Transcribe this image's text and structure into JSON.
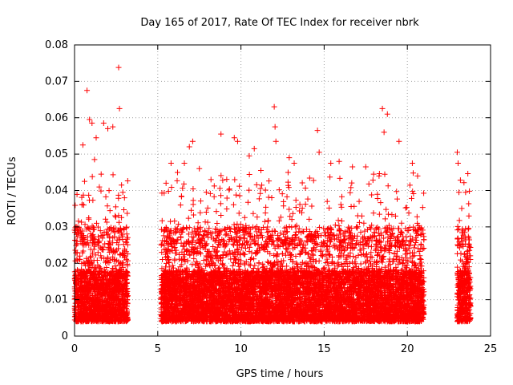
{
  "chart_data": {
    "type": "scatter",
    "title": "Day 165 of 2017, Rate Of TEC Index for receiver nbrk",
    "xlabel": "GPS time / hours",
    "ylabel": "ROTI / TECUs",
    "xlim": [
      0,
      25
    ],
    "ylim": [
      0,
      0.08
    ],
    "xticks": [
      "0",
      "5",
      "10",
      "15",
      "20",
      "25"
    ],
    "yticks": [
      "0",
      "0.01",
      "0.02",
      "0.03",
      "0.04",
      "0.05",
      "0.06",
      "0.07",
      "0.08"
    ],
    "grid": true,
    "marker": "plus",
    "series_color": "#ff0000",
    "data_coverage": [
      {
        "x_start": 0.0,
        "x_end": 3.2
      },
      {
        "x_start": 5.2,
        "x_end": 21.0
      },
      {
        "x_start": 23.0,
        "x_end": 23.8
      }
    ],
    "typical_range": [
      0.004,
      0.03
    ],
    "points": [
      [
        0.75,
        0.0675
      ],
      [
        0.9,
        0.0595
      ],
      [
        1.05,
        0.0585
      ],
      [
        1.3,
        0.0545
      ],
      [
        1.75,
        0.0585
      ],
      [
        2.0,
        0.057
      ],
      [
        2.3,
        0.0575
      ],
      [
        2.65,
        0.0738
      ],
      [
        2.7,
        0.0625
      ],
      [
        0.5,
        0.0525
      ],
      [
        0.6,
        0.0425
      ],
      [
        1.2,
        0.0485
      ],
      [
        1.6,
        0.0445
      ],
      [
        2.9,
        0.0395
      ],
      [
        3.0,
        0.038
      ],
      [
        5.5,
        0.042
      ],
      [
        5.8,
        0.0475
      ],
      [
        6.6,
        0.0475
      ],
      [
        6.9,
        0.052
      ],
      [
        7.1,
        0.0535
      ],
      [
        7.5,
        0.046
      ],
      [
        8.2,
        0.043
      ],
      [
        8.8,
        0.0555
      ],
      [
        9.6,
        0.0545
      ],
      [
        9.8,
        0.0535
      ],
      [
        10.5,
        0.0495
      ],
      [
        10.8,
        0.0515
      ],
      [
        11.2,
        0.0455
      ],
      [
        12.0,
        0.063
      ],
      [
        12.05,
        0.0575
      ],
      [
        12.1,
        0.0535
      ],
      [
        12.9,
        0.049
      ],
      [
        13.2,
        0.0475
      ],
      [
        14.6,
        0.0565
      ],
      [
        14.7,
        0.0505
      ],
      [
        15.4,
        0.0475
      ],
      [
        15.9,
        0.048
      ],
      [
        16.7,
        0.0465
      ],
      [
        17.5,
        0.0465
      ],
      [
        18.3,
        0.044
      ],
      [
        18.5,
        0.0625
      ],
      [
        18.6,
        0.056
      ],
      [
        18.8,
        0.061
      ],
      [
        19.5,
        0.0535
      ],
      [
        20.3,
        0.0475
      ],
      [
        20.6,
        0.031
      ],
      [
        20.8,
        0.024
      ],
      [
        23.0,
        0.0505
      ],
      [
        23.05,
        0.0475
      ],
      [
        23.1,
        0.0395
      ],
      [
        23.5,
        0.0395
      ],
      [
        23.7,
        0.033
      ]
    ]
  }
}
